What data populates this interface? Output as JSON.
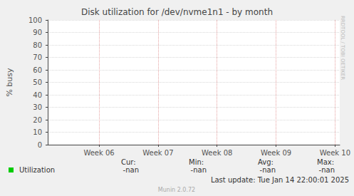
{
  "chart_data": {
    "type": "line",
    "title": "Disk utilization for /dev/nvme1n1 - by month",
    "y_label": "% busy",
    "x": [
      6,
      7,
      8,
      9,
      10
    ],
    "series": [
      {
        "name": "Utilization",
        "color": "#00cc00",
        "values": [
          null,
          null,
          null,
          null,
          null
        ],
        "stats": [
          {
            "label": "Cur:",
            "value": "-nan"
          },
          {
            "label": "Min:",
            "value": "-nan"
          },
          {
            "label": "Avg:",
            "value": "-nan"
          },
          {
            "label": "Max:",
            "value": "-nan"
          }
        ]
      }
    ],
    "xlim": [
      5.13,
      10.08
    ],
    "xticks": [
      {
        "value": 6,
        "label": "Week 06"
      },
      {
        "value": 7,
        "label": "Week 07"
      },
      {
        "value": 8,
        "label": "Week 08"
      },
      {
        "value": 9,
        "label": "Week 09"
      },
      {
        "value": 10,
        "label": "Week 10"
      }
    ],
    "ylim": [
      0,
      100
    ],
    "yticks": [
      0,
      10,
      20,
      30,
      40,
      50,
      60,
      70,
      80,
      90,
      100
    ],
    "grid": true,
    "annotations": {
      "last_update": "Last update: Tue Jan 14 22:00:01 2025",
      "footer": "Munin 2.0.72",
      "watermark": "RRDTOOL / TOBI OETIKER"
    }
  }
}
